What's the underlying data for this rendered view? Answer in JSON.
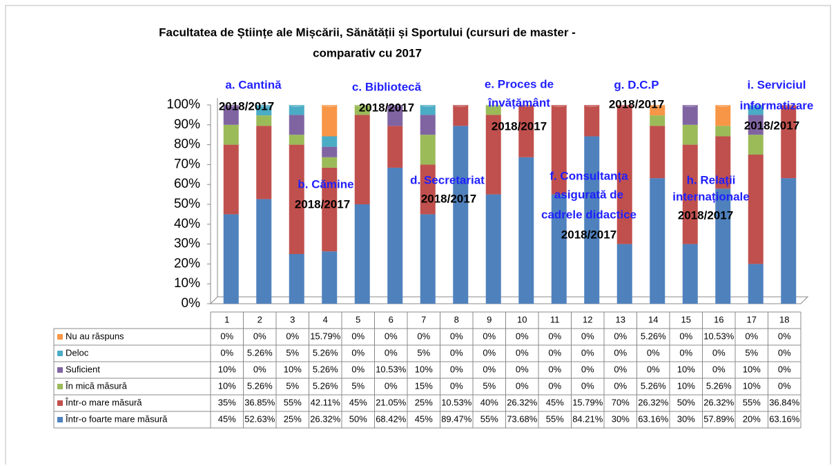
{
  "chart_data": {
    "type": "bar",
    "stacked": true,
    "title": [
      "Facultatea de Științe ale Mișcării, Sănătății și Sportului (cursuri de master -",
      "comparativ cu 2017"
    ],
    "categories": [
      "1",
      "2",
      "3",
      "4",
      "5",
      "6",
      "7",
      "8",
      "9",
      "10",
      "11",
      "12",
      "13",
      "14",
      "15",
      "16",
      "17",
      "18"
    ],
    "ylim": [
      0,
      100
    ],
    "yticks": [
      {
        "value": 0,
        "label": "0%"
      },
      {
        "value": 10,
        "label": "10%"
      },
      {
        "value": 20,
        "label": "20%"
      },
      {
        "value": 30,
        "label": "30%"
      },
      {
        "value": 40,
        "label": "40%"
      },
      {
        "value": 50,
        "label": "50%"
      },
      {
        "value": 60,
        "label": "60%"
      },
      {
        "value": 70,
        "label": "70%"
      },
      {
        "value": 80,
        "label": "80%"
      },
      {
        "value": 90,
        "label": "90%"
      },
      {
        "value": 100,
        "label": "100%"
      }
    ],
    "series": [
      {
        "name": "Într-o foarte mare măsură",
        "color": "#4f81bd",
        "values": [
          45,
          52.63,
          25,
          26.32,
          50,
          68.42,
          45,
          89.47,
          55,
          73.68,
          55,
          84.21,
          30,
          63.16,
          30,
          57.89,
          20,
          63.16
        ],
        "value_labels": [
          "45%",
          "52.63%",
          "25%",
          "26.32%",
          "50%",
          "68.42%",
          "45%",
          "89.47%",
          "55%",
          "73.68%",
          "55%",
          "84.21%",
          "30%",
          "63.16%",
          "30%",
          "57.89%",
          "20%",
          "63.16%"
        ]
      },
      {
        "name": "Într-o mare măsură",
        "color": "#c0504d",
        "values": [
          35,
          36.85,
          55,
          42.11,
          45,
          21.05,
          25,
          10.53,
          40,
          26.32,
          45,
          15.79,
          70,
          26.32,
          50,
          26.32,
          55,
          36.84
        ],
        "value_labels": [
          "35%",
          "36.85%",
          "55%",
          "42.11%",
          "45%",
          "21.05%",
          "25%",
          "10.53%",
          "40%",
          "26.32%",
          "45%",
          "15.79%",
          "70%",
          "26.32%",
          "50%",
          "26.32%",
          "55%",
          "36.84%"
        ]
      },
      {
        "name": "În mică măsură",
        "color": "#9bbb59",
        "values": [
          10,
          5.26,
          5,
          5.26,
          5,
          0,
          15,
          0,
          5,
          0,
          0,
          0,
          0,
          5.26,
          10,
          5.26,
          10,
          0
        ],
        "value_labels": [
          "10%",
          "5.26%",
          "5%",
          "5.26%",
          "5%",
          "0%",
          "15%",
          "0%",
          "5%",
          "0%",
          "0%",
          "0%",
          "0%",
          "5.26%",
          "10%",
          "5.26%",
          "10%",
          "0%"
        ]
      },
      {
        "name": "Suficient",
        "color": "#8064a2",
        "values": [
          10,
          0,
          10,
          5.26,
          0,
          10.53,
          10,
          0,
          0,
          0,
          0,
          0,
          0,
          0,
          10,
          0,
          10,
          0
        ],
        "value_labels": [
          "10%",
          "0%",
          "10%",
          "5.26%",
          "0%",
          "10.53%",
          "10%",
          "0%",
          "0%",
          "0%",
          "0%",
          "0%",
          "0%",
          "0%",
          "10%",
          "0%",
          "10%",
          "0%"
        ]
      },
      {
        "name": "Deloc",
        "color": "#4bacc6",
        "values": [
          0,
          5.26,
          5,
          5.26,
          0,
          0,
          5,
          0,
          0,
          0,
          0,
          0,
          0,
          0,
          0,
          0,
          5,
          0
        ],
        "value_labels": [
          "0%",
          "5.26%",
          "5%",
          "5.26%",
          "0%",
          "0%",
          "5%",
          "0%",
          "0%",
          "0%",
          "0%",
          "0%",
          "0%",
          "0%",
          "0%",
          "0%",
          "5%",
          "0%"
        ]
      },
      {
        "name": "Nu au răspuns",
        "color": "#f79646",
        "values": [
          0,
          0,
          0,
          15.79,
          0,
          0,
          0,
          0,
          0,
          0,
          0,
          0,
          0,
          5.26,
          0,
          10.53,
          0,
          0
        ],
        "value_labels": [
          "0%",
          "0%",
          "0%",
          "15.79%",
          "0%",
          "0%",
          "0%",
          "0%",
          "0%",
          "0%",
          "0%",
          "0%",
          "0%",
          "5.26%",
          "0%",
          "10.53%",
          "0%",
          "0%"
        ]
      }
    ],
    "annotations": [
      {
        "lines": [
          "a. Cantină"
        ],
        "note": "2018/2017"
      },
      {
        "lines": [
          "b. Cămine"
        ],
        "note": "2018/2017"
      },
      {
        "lines": [
          "c. Bibliotecă"
        ],
        "note": "2018/2017"
      },
      {
        "lines": [
          "d. Secretariat"
        ],
        "note": "2018/2017"
      },
      {
        "lines": [
          "e. Proces de",
          "învățământ"
        ],
        "note": "2018/2017"
      },
      {
        "lines": [
          "f. Consultanța",
          "asigurată de",
          "cadrele didactice"
        ],
        "note": "2018/2017"
      },
      {
        "lines": [
          "g. D.C.P"
        ],
        "note": "2018/2017"
      },
      {
        "lines": [
          "h. Relații",
          "internaționale"
        ],
        "note": "2018/2017"
      },
      {
        "lines": [
          "i. Serviciul",
          "informatizare"
        ],
        "note": "2018/2017"
      }
    ]
  }
}
